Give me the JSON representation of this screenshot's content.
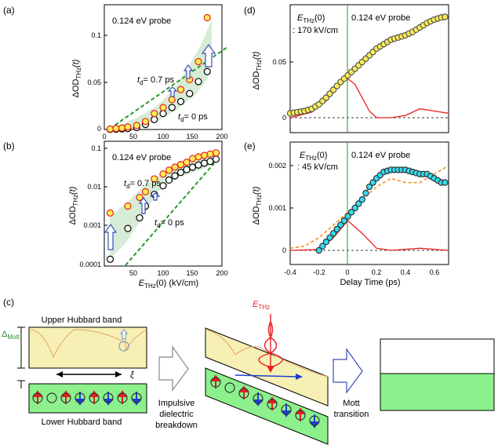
{
  "figure": {
    "panels": {
      "a": "(a)",
      "b": "(b)",
      "c": "(c)",
      "d": "(d)",
      "e": "(e)"
    },
    "probe_label": "0.124 eV probe",
    "y_label_main": "ΔOD",
    "y_label_sub": "THz",
    "y_label_tail": "(t)",
    "td_prefix": "t",
    "td_sub": "d",
    "td_07": "= 0.7 ps",
    "td_0": "= 0 ps",
    "x_label_E": "E",
    "x_label_E_sub": "THz",
    "x_label_tail": "(0) (kV/cm)",
    "delay_label": "Delay Time (ps)",
    "d_field_head": "E",
    "d_field_sub": "THz",
    "d_field_tail": "(0)",
    "d_field_value": ": 170 kV/cm",
    "e_field_value": ": 45 kV/cm",
    "upper_band": "Upper Hubbard band",
    "lower_band": "Lower Hubbard band",
    "delta": "Δ",
    "delta_sub": "Mott",
    "xi": "ξ",
    "step1": [
      "Impulsive",
      "dielectric",
      "breakdown"
    ],
    "step2": [
      "Mott",
      "transition"
    ],
    "ethz_head": "E",
    "ethz_sub": "THz"
  },
  "chart_data": [
    {
      "panel": "a",
      "type": "scatter",
      "title": "0.124 eV probe",
      "xlabel": "E_THz(0) (kV/cm)",
      "ylabel": "ΔOD_THz(t)",
      "xlim": [
        0,
        200
      ],
      "ylim": [
        0,
        0.125
      ],
      "x_ticks": [
        "0",
        "50",
        "100",
        "150",
        "200"
      ],
      "y_ticks": [
        "0",
        "0.05",
        "0.1"
      ],
      "series": [
        {
          "name": "t_d = 0.7 ps",
          "x": [
            10,
            20,
            30,
            40,
            55,
            70,
            85,
            100,
            115,
            130,
            145,
            160,
            175
          ],
          "y": [
            0.0005,
            0.001,
            0.0015,
            0.0025,
            0.004,
            0.008,
            0.016,
            0.022,
            0.03,
            0.04,
            0.05,
            0.068,
            0.112
          ]
        },
        {
          "name": "t_d = 0 ps",
          "x": [
            10,
            20,
            30,
            40,
            55,
            70,
            85,
            100,
            115,
            130,
            145,
            160,
            175
          ],
          "y": [
            0.0001,
            0.0003,
            0.0006,
            0.001,
            0.002,
            0.005,
            0.01,
            0.016,
            0.022,
            0.028,
            0.036,
            0.048,
            0.058
          ]
        }
      ]
    },
    {
      "panel": "b",
      "type": "scatter",
      "title": "0.124 eV probe",
      "xlabel": "E_THz(0) (kV/cm)",
      "ylabel": "ΔOD_THz(t)",
      "xlim": [
        0,
        200
      ],
      "ylim": [
        0.0001,
        0.2
      ],
      "x_ticks": [
        "50",
        "100",
        "150",
        "200"
      ],
      "y_ticks": [
        "0.0001",
        "0.001",
        "0.01",
        "0.1"
      ],
      "series": [
        {
          "name": "t_d = 0.7 ps",
          "x": [
            10,
            40,
            60,
            70,
            85,
            100,
            110,
            120,
            130,
            140,
            150,
            160,
            170,
            180,
            190
          ],
          "y": [
            0.002,
            0.003,
            0.005,
            0.007,
            0.015,
            0.02,
            0.025,
            0.03,
            0.035,
            0.04,
            0.05,
            0.055,
            0.06,
            0.065,
            0.07
          ]
        },
        {
          "name": "t_d = 0 ps",
          "x": [
            10,
            40,
            60,
            70,
            85,
            100,
            110,
            120,
            130,
            140,
            150,
            160,
            170,
            180,
            190
          ],
          "y": [
            0.00013,
            0.0008,
            0.0015,
            0.003,
            0.006,
            0.01,
            0.014,
            0.018,
            0.022,
            0.026,
            0.03,
            0.034,
            0.038,
            0.042,
            0.048
          ]
        }
      ]
    },
    {
      "panel": "d",
      "type": "line",
      "xlabel": "Delay Time (ps)",
      "ylabel": "ΔOD_THz(t)",
      "xlim": [
        -0.4,
        0.7
      ],
      "ylim": [
        -0.01,
        0.095
      ],
      "x_ticks": [
        "-0.4",
        "-0.2",
        "0",
        "0.2",
        "0.4",
        "0.6"
      ],
      "y_ticks": [
        "0",
        "0.05"
      ],
      "series": [
        {
          "name": "data",
          "x": [
            -0.4,
            -0.35,
            -0.3,
            -0.25,
            -0.2,
            -0.15,
            -0.1,
            -0.05,
            0,
            0.05,
            0.1,
            0.15,
            0.2,
            0.25,
            0.3,
            0.35,
            0.4,
            0.45,
            0.5,
            0.55,
            0.6,
            0.65,
            0.7
          ],
          "y": [
            0.004,
            0.005,
            0.006,
            0.008,
            0.012,
            0.018,
            0.025,
            0.032,
            0.038,
            0.044,
            0.05,
            0.056,
            0.062,
            0.066,
            0.07,
            0.072,
            0.074,
            0.077,
            0.081,
            0.085,
            0.088,
            0.09,
            0.091
          ]
        },
        {
          "name": "E_THz(t)^2",
          "x": [
            -0.4,
            -0.25,
            -0.15,
            -0.05,
            0,
            0.05,
            0.1,
            0.15,
            0.2,
            0.3,
            0.4,
            0.5,
            0.6,
            0.7
          ],
          "y": [
            0,
            0.005,
            0.015,
            0.032,
            0.035,
            0.03,
            0.018,
            0.006,
            0,
            0,
            0.002,
            0.008,
            0.006,
            0.004
          ]
        }
      ]
    },
    {
      "panel": "e",
      "type": "line",
      "xlabel": "Delay Time (ps)",
      "ylabel": "ΔOD_THz(t)",
      "xlim": [
        -0.4,
        0.7
      ],
      "ylim": [
        -0.0001,
        0.0022
      ],
      "x_ticks": [
        "-0.4",
        "-0.2",
        "0",
        "0.2",
        "0.4",
        "0.6"
      ],
      "y_ticks": [
        "0",
        "0.001",
        "0.002"
      ],
      "series": [
        {
          "name": "data",
          "x": [
            -0.2,
            -0.15,
            -0.1,
            -0.05,
            0,
            0.05,
            0.1,
            0.15,
            0.2,
            0.25,
            0.3,
            0.35,
            0.4,
            0.45,
            0.5,
            0.55,
            0.6,
            0.65,
            0.7
          ],
          "y": [
            0.0,
            0.0002,
            0.0004,
            0.0006,
            0.0008,
            0.001,
            0.0012,
            0.0015,
            0.0017,
            0.00185,
            0.0019,
            0.0019,
            0.0019,
            0.00185,
            0.0018,
            0.0018,
            0.0017,
            0.0016,
            0.0016
          ]
        },
        {
          "name": "E_THz(t)^2",
          "x": [
            -0.4,
            -0.2,
            -0.1,
            0,
            0.1,
            0.2,
            0.3,
            0.5,
            0.7
          ],
          "y": [
            0,
            2e-05,
            0.0003,
            0.0007,
            0.0004,
            5e-05,
            0,
            5e-05,
            0
          ]
        },
        {
          "name": "simulation",
          "x": [
            -0.4,
            -0.3,
            -0.2,
            -0.1,
            0,
            0.1,
            0.2,
            0.3,
            0.4,
            0.5,
            0.6,
            0.7
          ],
          "y": [
            5e-05,
            0.0001,
            0.0003,
            0.0006,
            0.0009,
            0.0012,
            0.0015,
            0.0017,
            0.0016,
            0.0016,
            0.0018,
            0.002
          ]
        }
      ]
    }
  ],
  "colors": {
    "yellow": "#ffee55",
    "cyan": "#33ddee",
    "red": "#e82020",
    "green": "#2a9a2a",
    "band_green": "#8cf08c",
    "band_yellow": "#f6f0b4",
    "shade": "#d6ecd6",
    "up_spin": "#e02020",
    "down_spin": "#1d3fd0"
  }
}
